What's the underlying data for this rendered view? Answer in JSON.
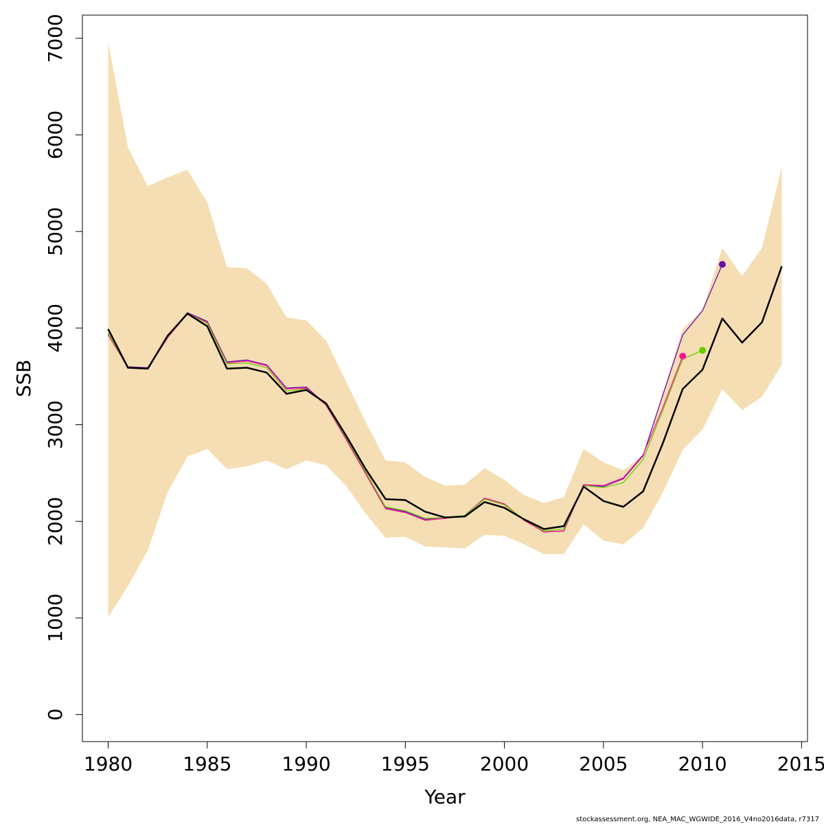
{
  "chart_data": {
    "type": "line",
    "xlabel": "Year",
    "ylabel": "SSB",
    "xlim": [
      1978.7,
      2015.3
    ],
    "ylim": [
      -280,
      7240
    ],
    "x_ticks": [
      1980,
      1985,
      1990,
      1995,
      2000,
      2005,
      2010,
      2015
    ],
    "y_ticks": [
      0,
      1000,
      2000,
      3000,
      4000,
      5000,
      6000,
      7000
    ],
    "grid": false,
    "legend": "none",
    "band": {
      "color": "#f5deb3",
      "x": [
        1980,
        1981,
        1982,
        1983,
        1984,
        1985,
        1986,
        1987,
        1988,
        1989,
        1990,
        1991,
        1992,
        1993,
        1994,
        1995,
        1996,
        1997,
        1998,
        1999,
        2000,
        2001,
        2002,
        2003,
        2004,
        2005,
        2006,
        2007,
        2008,
        2009,
        2010,
        2011,
        2012,
        2013,
        2014
      ],
      "upper": [
        6960,
        5870,
        5470,
        5560,
        5640,
        5300,
        4630,
        4620,
        4460,
        4110,
        4080,
        3870,
        3450,
        3030,
        2630,
        2610,
        2460,
        2370,
        2380,
        2550,
        2430,
        2270,
        2190,
        2250,
        2750,
        2610,
        2530,
        2680,
        3330,
        3990,
        4190,
        4830,
        4540,
        4830,
        5670
      ],
      "lower": [
        1010,
        1330,
        1700,
        2300,
        2670,
        2750,
        2540,
        2570,
        2630,
        2540,
        2630,
        2580,
        2370,
        2080,
        1830,
        1840,
        1740,
        1730,
        1720,
        1860,
        1850,
        1760,
        1660,
        1660,
        1970,
        1800,
        1760,
        1930,
        2300,
        2740,
        2950,
        3370,
        3150,
        3290,
        3620
      ]
    },
    "series": [
      {
        "color": "#000000",
        "width": 2.5,
        "x": [
          1980,
          1981,
          1982,
          1983,
          1984,
          1985,
          1986,
          1987,
          1988,
          1989,
          1990,
          1991,
          1992,
          1993,
          1994,
          1995,
          1996,
          1997,
          1998,
          1999,
          2000,
          2001,
          2002,
          2003,
          2004,
          2005,
          2006,
          2007,
          2008,
          2009,
          2010,
          2011,
          2012,
          2013,
          2014
        ],
        "values": [
          3990,
          3590,
          3580,
          3920,
          4150,
          4020,
          3580,
          3590,
          3540,
          3320,
          3360,
          3220,
          2890,
          2540,
          2230,
          2220,
          2100,
          2040,
          2050,
          2200,
          2140,
          2020,
          1920,
          1950,
          2360,
          2210,
          2150,
          2310,
          2810,
          3370,
          3570,
          4100,
          3850,
          4060,
          4640
        ]
      },
      {
        "color": "#6a0dad",
        "width": 1.3,
        "end_point": true,
        "x": [
          1980,
          1981,
          1982,
          1983,
          1984,
          1985,
          1986,
          1987,
          1988,
          1989,
          1990,
          1991,
          1992,
          1993,
          1994,
          1995,
          1996,
          1997,
          1998,
          1999,
          2000,
          2001,
          2002,
          2003,
          2004,
          2005,
          2006,
          2007,
          2008,
          2009,
          2010,
          2011
        ],
        "values": [
          3940,
          3600,
          3590,
          3900,
          4160,
          4070,
          3650,
          3670,
          3620,
          3380,
          3390,
          3210,
          2860,
          2500,
          2140,
          2100,
          2020,
          2040,
          2060,
          2240,
          2180,
          2010,
          1890,
          1900,
          2380,
          2360,
          2440,
          2680,
          3310,
          3930,
          4180,
          4660
        ]
      },
      {
        "color": "#ff1493",
        "width": 1.3,
        "end_point": true,
        "x": [
          1980,
          1981,
          1982,
          1983,
          1984,
          1985,
          1986,
          1987,
          1988,
          1989,
          1990,
          1991,
          1992,
          1993,
          1994,
          1995,
          1996,
          1997,
          1998,
          1999,
          2000,
          2001,
          2002,
          2003,
          2004,
          2005,
          2006,
          2007,
          2008,
          2009
        ],
        "values": [
          3930,
          3590,
          3580,
          3900,
          4150,
          4060,
          3640,
          3660,
          3610,
          3370,
          3380,
          3200,
          2850,
          2490,
          2130,
          2090,
          2010,
          2030,
          2060,
          2240,
          2180,
          2010,
          1890,
          1900,
          2380,
          2370,
          2450,
          2690,
          3180,
          3710
        ]
      },
      {
        "color": "#66cc00",
        "width": 1.3,
        "end_point": true,
        "x": [
          1980,
          1981,
          1982,
          1983,
          1984,
          1985,
          1986,
          1987,
          1988,
          1989,
          1990,
          1991,
          1992,
          1993,
          1994,
          1995,
          1996,
          1997,
          1998,
          1999,
          2000,
          2001,
          2002,
          2003,
          2004,
          2005,
          2006,
          2007,
          2008,
          2009,
          2010
        ],
        "values": [
          3950,
          3590,
          3580,
          3910,
          4150,
          4050,
          3630,
          3640,
          3590,
          3350,
          3370,
          3210,
          2870,
          2510,
          2150,
          2110,
          2030,
          2040,
          2060,
          2230,
          2170,
          2020,
          1900,
          1920,
          2370,
          2350,
          2400,
          2640,
          3150,
          3680,
          3770
        ]
      }
    ]
  },
  "footer": "stockassessment.org, NEA_MAC_WGWIDE_2016_V4no2016data, r7317"
}
